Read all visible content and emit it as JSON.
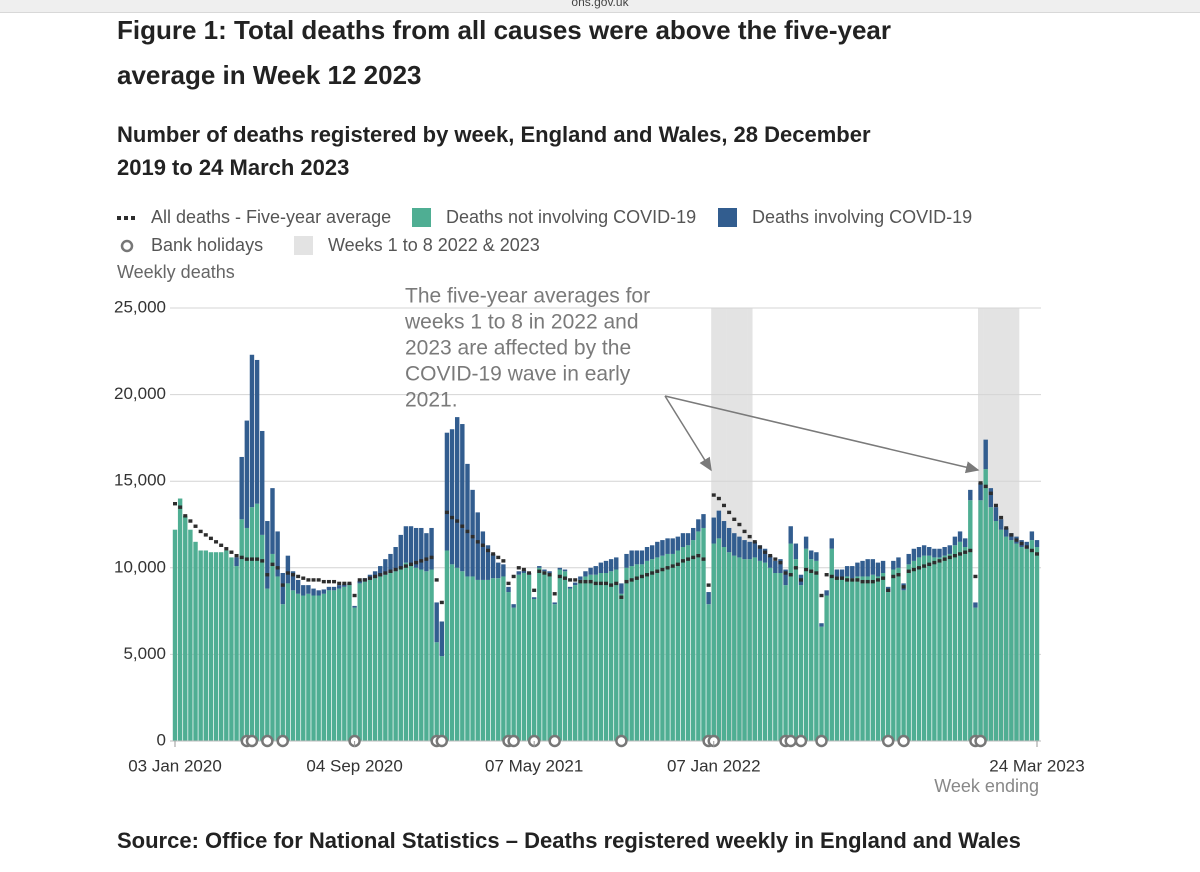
{
  "browser": {
    "url": "ons.gov.uk"
  },
  "chart_data": {
    "type": "bar",
    "title": "Figure 1: Total deaths from all causes were above the five-year average in Week 12 2023",
    "subtitle": "Number of deaths registered by week, England and Wales, 28 December 2019 to 24 March 2023",
    "y_label": "Weekly deaths",
    "x_label": "Week ending",
    "source": "Source: Office for National Statistics – Deaths registered weekly in England and Wales",
    "annotation": [
      "The five-year averages for",
      "weeks 1 to 8 in 2022 and",
      "2023 are affected by the",
      "COVID-19 wave in early",
      "2021."
    ],
    "ylim": [
      0,
      25000
    ],
    "yticks": [
      0,
      {
        "value": 5000,
        "label": "5,000"
      },
      {
        "value": 10000,
        "label": "10,000"
      },
      {
        "value": 15000,
        "label": "15,000"
      },
      {
        "value": 20000,
        "label": "20,000"
      },
      {
        "value": 25000,
        "label": "25,000"
      }
    ],
    "grid": true,
    "categories": [
      "03 Jan 2020",
      null,
      null,
      null,
      null,
      null,
      null,
      null,
      null,
      null,
      null,
      null,
      null,
      null,
      null,
      null,
      null,
      null,
      null,
      null,
      null,
      null,
      null,
      null,
      null,
      null,
      null,
      null,
      null,
      null,
      null,
      null,
      null,
      null,
      null,
      "04 Sep 2020",
      null,
      null,
      null,
      null,
      null,
      null,
      null,
      null,
      null,
      null,
      null,
      null,
      null,
      null,
      null,
      null,
      null,
      null,
      null,
      null,
      null,
      null,
      null,
      null,
      null,
      null,
      null,
      null,
      null,
      null,
      null,
      null,
      null,
      null,
      "07 May 2021",
      null,
      null,
      null,
      null,
      null,
      null,
      null,
      null,
      null,
      null,
      null,
      null,
      null,
      null,
      null,
      null,
      null,
      null,
      null,
      null,
      null,
      null,
      null,
      null,
      null,
      null,
      null,
      null,
      null,
      null,
      null,
      null,
      null,
      null,
      "07 Jan 2022",
      null,
      null,
      null,
      null,
      null,
      null,
      null,
      null,
      null,
      null,
      null,
      null,
      null,
      null,
      null,
      null,
      null,
      null,
      null,
      null,
      null,
      null,
      null,
      null,
      null,
      null,
      null,
      null,
      null,
      null,
      null,
      null,
      null,
      null,
      null,
      null,
      null,
      null,
      null,
      null,
      null,
      null,
      null,
      null,
      null,
      null,
      null,
      null,
      null,
      null,
      null,
      null,
      null,
      null,
      null,
      null,
      null,
      null,
      null,
      null,
      null,
      null,
      "24 Mar 2023"
    ],
    "series": [
      {
        "name": "All deaths - Five-year average",
        "mark": "dash",
        "color": "#2d2d2d",
        "values": [
          13700,
          13500,
          13000,
          12700,
          12400,
          12100,
          11900,
          11700,
          11500,
          11300,
          11100,
          10900,
          10700,
          10600,
          10500,
          10500,
          10500,
          10400,
          9600,
          10200,
          10000,
          9000,
          9700,
          9600,
          9500,
          9400,
          9300,
          9300,
          9300,
          9200,
          9200,
          9200,
          9100,
          9100,
          9100,
          8400,
          9300,
          9300,
          9400,
          9500,
          9600,
          9700,
          9800,
          9900,
          10000,
          10100,
          10200,
          10300,
          10400,
          10500,
          10600,
          9300,
          8000,
          13200,
          12900,
          12700,
          12400,
          12100,
          11800,
          11500,
          11300,
          11000,
          10800,
          10600,
          10400,
          9100,
          9500,
          10000,
          9900,
          9700,
          8700,
          9800,
          9700,
          9600,
          8500,
          9500,
          9400,
          9300,
          9300,
          9200,
          9200,
          9200,
          9100,
          9100,
          9100,
          9000,
          9100,
          8300,
          9200,
          9300,
          9400,
          9500,
          9600,
          9700,
          9800,
          9900,
          10000,
          10100,
          10200,
          10400,
          10500,
          10600,
          10700,
          10500,
          9000,
          14200,
          14000,
          13600,
          13200,
          12800,
          12500,
          12100,
          11800,
          11500,
          11200,
          10900,
          10700,
          10500,
          10300,
          9700,
          9600,
          10000,
          9300,
          9900,
          9800,
          9700,
          8400,
          9600,
          9500,
          9400,
          9400,
          9300,
          9300,
          9300,
          9200,
          9200,
          9200,
          9300,
          9400,
          8700,
          9500,
          9600,
          8900,
          9800,
          9900,
          10000,
          10100,
          10200,
          10300,
          10400,
          10500,
          10600,
          10700,
          10800,
          10900,
          11000,
          9500,
          14900,
          14700,
          14300,
          13600,
          12900,
          12300,
          11900,
          11600,
          11400,
          11200,
          11000,
          10800
        ]
      },
      {
        "name": "Deaths not involving COVID-19",
        "mark": "bar",
        "color": "#4fae93",
        "values": [
          12200,
          14000,
          13000,
          12200,
          11500,
          11000,
          11000,
          10900,
          10900,
          10900,
          11000,
          10600,
          10100,
          12800,
          12300,
          13500,
          13700,
          11900,
          8800,
          10800,
          9500,
          7900,
          9100,
          8700,
          8500,
          8400,
          8500,
          8400,
          8400,
          8500,
          8700,
          8700,
          8800,
          8900,
          9000,
          7700,
          9100,
          9200,
          9300,
          9400,
          9500,
          9600,
          9700,
          9800,
          10000,
          10300,
          10200,
          10000,
          9900,
          9800,
          9900,
          5700,
          4900,
          11000,
          10200,
          10000,
          9800,
          9500,
          9500,
          9300,
          9300,
          9300,
          9400,
          9400,
          9500,
          8600,
          7700,
          9600,
          9700,
          9600,
          8200,
          10000,
          9800,
          9700,
          7900,
          9900,
          9800,
          8800,
          9000,
          9300,
          9500,
          9600,
          9600,
          9700,
          9700,
          9800,
          9900,
          8500,
          10000,
          10100,
          10200,
          10200,
          10400,
          10500,
          10600,
          10700,
          10800,
          10800,
          11000,
          11200,
          11300,
          11600,
          12100,
          12300,
          7900,
          11400,
          11700,
          11200,
          10900,
          10700,
          10600,
          10500,
          10500,
          10600,
          10400,
          10300,
          10000,
          9700,
          9700,
          9000,
          11400,
          10500,
          9000,
          11100,
          10500,
          10400,
          6600,
          8400,
          11100,
          9500,
          9400,
          9500,
          9400,
          9500,
          9500,
          9500,
          9600,
          9500,
          9700,
          8600,
          9900,
          10000,
          8700,
          10200,
          10400,
          10600,
          10700,
          10700,
          10600,
          10600,
          10700,
          10800,
          11300,
          11500,
          11200,
          13900,
          7700,
          13900,
          15700,
          13500,
          12700,
          12200,
          11800,
          11600,
          11400,
          11200,
          11100,
          11600,
          11200
        ]
      },
      {
        "name": "Deaths involving COVID-19",
        "mark": "bar",
        "color": "#325d8f",
        "values": [
          0,
          0,
          0,
          0,
          0,
          0,
          0,
          0,
          0,
          0,
          0,
          0,
          500,
          3600,
          6200,
          8800,
          8300,
          6000,
          3900,
          3800,
          2600,
          1800,
          1600,
          1100,
          800,
          600,
          500,
          400,
          300,
          250,
          200,
          200,
          200,
          150,
          100,
          100,
          150,
          200,
          300,
          400,
          600,
          900,
          1100,
          1400,
          1900,
          2100,
          2200,
          2300,
          2400,
          2200,
          2400,
          2300,
          2000,
          6800,
          7800,
          8700,
          8500,
          6500,
          5000,
          3900,
          2800,
          2000,
          1400,
          900,
          700,
          300,
          200,
          200,
          150,
          100,
          100,
          100,
          100,
          100,
          100,
          100,
          100,
          100,
          150,
          200,
          300,
          400,
          500,
          600,
          700,
          700,
          700,
          600,
          800,
          900,
          800,
          800,
          800,
          800,
          900,
          900,
          900,
          900,
          800,
          800,
          700,
          700,
          700,
          800,
          700,
          1500,
          1600,
          1500,
          1400,
          1300,
          1200,
          1100,
          1000,
          900,
          900,
          800,
          700,
          700,
          800,
          900,
          1000,
          900,
          600,
          700,
          500,
          500,
          200,
          300,
          600,
          400,
          500,
          600,
          700,
          800,
          900,
          1000,
          900,
          800,
          700,
          300,
          500,
          600,
          400,
          600,
          700,
          600,
          600,
          500,
          500,
          500,
          500,
          500,
          500,
          600,
          500,
          600,
          300,
          1000,
          1700,
          1100,
          800,
          600,
          500,
          400,
          400,
          400,
          400,
          500,
          400
        ]
      },
      {
        "name": "Bank holidays",
        "mark": "circle",
        "color": "#777777",
        "values": [
          null,
          null,
          null,
          null,
          null,
          null,
          null,
          null,
          null,
          null,
          null,
          null,
          null,
          null,
          0,
          0,
          null,
          null,
          0,
          null,
          null,
          0,
          null,
          null,
          null,
          null,
          null,
          null,
          null,
          null,
          null,
          null,
          null,
          null,
          null,
          0,
          null,
          null,
          null,
          null,
          null,
          null,
          null,
          null,
          null,
          null,
          null,
          null,
          null,
          null,
          null,
          0,
          0,
          null,
          null,
          null,
          null,
          null,
          null,
          null,
          null,
          null,
          null,
          null,
          null,
          0,
          0,
          null,
          null,
          null,
          0,
          null,
          null,
          null,
          0,
          null,
          null,
          null,
          null,
          null,
          null,
          null,
          null,
          null,
          null,
          null,
          null,
          0,
          null,
          null,
          null,
          null,
          null,
          null,
          null,
          null,
          null,
          null,
          null,
          null,
          null,
          null,
          null,
          null,
          0,
          0,
          null,
          null,
          null,
          null,
          null,
          null,
          null,
          null,
          null,
          null,
          null,
          null,
          null,
          0,
          0,
          null,
          0,
          null,
          null,
          null,
          0,
          null,
          null,
          null,
          null,
          null,
          null,
          null,
          null,
          null,
          null,
          null,
          null,
          0,
          null,
          null,
          0,
          null,
          null,
          null,
          null,
          null,
          null,
          null,
          null,
          null,
          null,
          null,
          null,
          null,
          0,
          0,
          null,
          null,
          null,
          null,
          null,
          null,
          null,
          null,
          null,
          null,
          null
        ]
      },
      {
        "name": "Weeks 1 to 8 2022 & 2023",
        "mark": "band",
        "color": "#e3e3e3",
        "values": [
          null,
          null,
          null,
          null,
          null,
          null,
          null,
          null,
          null,
          null,
          null,
          null,
          null,
          null,
          null,
          null,
          null,
          null,
          null,
          null,
          null,
          null,
          null,
          null,
          null,
          null,
          null,
          null,
          null,
          null,
          null,
          null,
          null,
          null,
          null,
          null,
          null,
          null,
          null,
          null,
          null,
          null,
          null,
          null,
          null,
          null,
          null,
          null,
          null,
          null,
          null,
          null,
          null,
          null,
          null,
          null,
          null,
          null,
          null,
          null,
          null,
          null,
          null,
          null,
          null,
          null,
          null,
          null,
          null,
          null,
          null,
          null,
          null,
          null,
          null,
          null,
          null,
          null,
          null,
          null,
          null,
          null,
          null,
          null,
          null,
          null,
          null,
          null,
          null,
          null,
          null,
          null,
          null,
          null,
          null,
          null,
          null,
          null,
          null,
          null,
          null,
          null,
          null,
          null,
          null,
          25000,
          25000,
          25000,
          25000,
          25000,
          25000,
          25000,
          25000,
          null,
          null,
          null,
          null,
          null,
          null,
          null,
          null,
          null,
          null,
          null,
          null,
          null,
          null,
          null,
          null,
          null,
          null,
          null,
          null,
          null,
          null,
          null,
          null,
          null,
          null,
          null,
          null,
          null,
          null,
          null,
          null,
          null,
          null,
          null,
          null,
          null,
          null,
          null,
          null,
          null,
          null,
          null,
          null,
          25000,
          25000,
          25000,
          25000,
          25000,
          25000,
          25000,
          25000,
          null,
          null,
          null,
          null
        ]
      }
    ]
  }
}
